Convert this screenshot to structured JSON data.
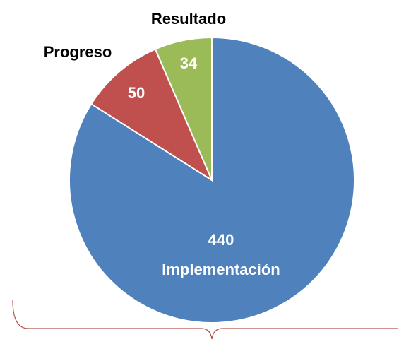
{
  "chart_data": {
    "type": "pie",
    "categories": [
      "Implementación",
      "Progreso",
      "Resultado"
    ],
    "values": [
      440,
      50,
      34
    ],
    "colors": [
      "#4f81bd",
      "#c0504d",
      "#9bbb59"
    ]
  }
}
